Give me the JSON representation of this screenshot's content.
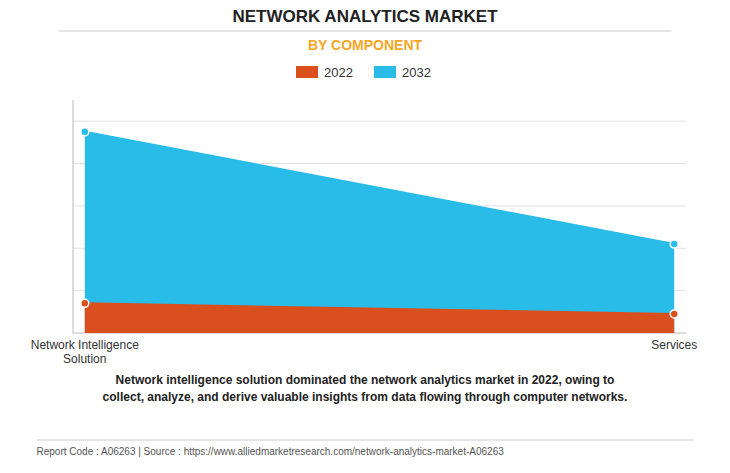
{
  "chart_data": {
    "type": "area",
    "title": "NETWORK ANALYTICS MARKET",
    "subtitle": "BY COMPONENT",
    "categories": [
      "Network Intelligence\nSolution",
      "Services"
    ],
    "series": [
      {
        "name": "2022",
        "color": "#d94f1e",
        "values": [
          1.4,
          0.9
        ],
        "marker": "circle"
      },
      {
        "name": "2032",
        "color": "#29bce8",
        "values": [
          9.5,
          4.2
        ],
        "marker": "circle"
      }
    ],
    "ylim": [
      0,
      11
    ],
    "yticks": [
      2,
      4,
      6,
      8,
      10
    ],
    "grid": true,
    "tick_labels": "x",
    "legend": "top",
    "annotations": [
      "Network intelligence solution dominated the network analytics market in 2022, owing to\ncollect, analyze, and derive valuable insights from data flowing through computer networks.",
      "Report Code : A06263  |  Source : https://www.alliedmarketresearch.com/network-analytics-market-A06263"
    ]
  }
}
